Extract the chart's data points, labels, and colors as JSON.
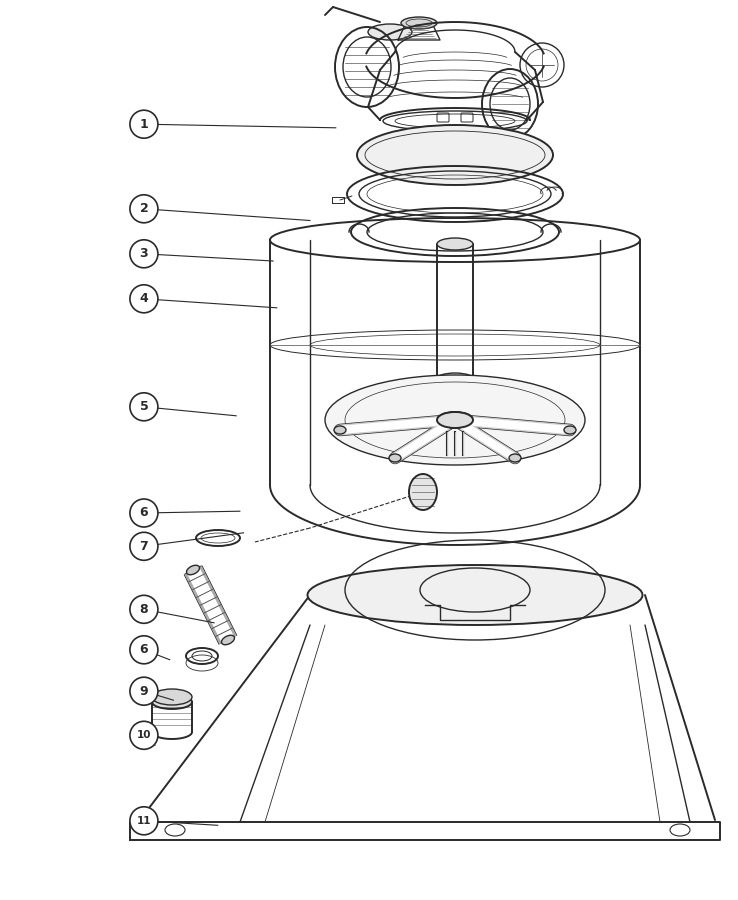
{
  "background_color": "#ffffff",
  "line_color": "#2a2a2a",
  "fig_width": 7.38,
  "fig_height": 9.0,
  "callouts": {
    "1": [
      0.195,
      0.862,
      0.455,
      0.858
    ],
    "2": [
      0.195,
      0.768,
      0.42,
      0.755
    ],
    "3": [
      0.195,
      0.718,
      0.37,
      0.71
    ],
    "4": [
      0.195,
      0.668,
      0.375,
      0.658
    ],
    "5": [
      0.195,
      0.548,
      0.32,
      0.538
    ],
    "6a": [
      0.195,
      0.43,
      0.325,
      0.432
    ],
    "7": [
      0.195,
      0.393,
      0.33,
      0.408
    ],
    "8": [
      0.195,
      0.323,
      0.29,
      0.308
    ],
    "6b": [
      0.195,
      0.278,
      0.23,
      0.267
    ],
    "9": [
      0.195,
      0.232,
      0.235,
      0.222
    ],
    "10": [
      0.195,
      0.183,
      0.21,
      0.172
    ],
    "11": [
      0.195,
      0.088,
      0.295,
      0.083
    ]
  }
}
